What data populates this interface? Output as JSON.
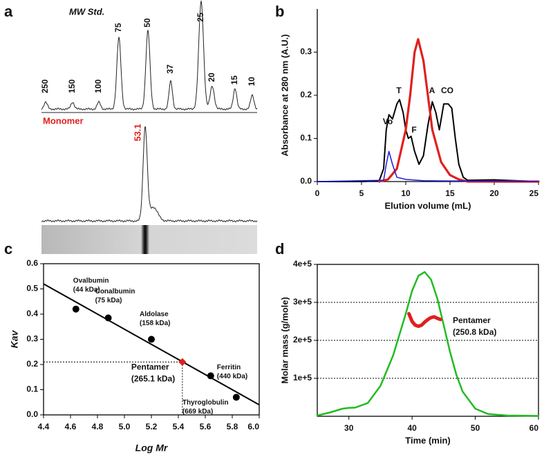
{
  "chart_data": [
    {
      "type": "electropherogram",
      "label": "a",
      "title": "MW Std.",
      "markers": [
        250,
        150,
        100,
        75,
        50,
        37,
        25,
        20,
        15,
        10
      ],
      "section_label": "Monomer",
      "peak_label": 53.1
    },
    {
      "type": "line",
      "label": "b",
      "xlabel": "Elution volume (mL)",
      "ylabel": "Absorbance at 280 nm (A.U.)",
      "xlim": [
        0,
        25
      ],
      "ylim": [
        0,
        0.4
      ],
      "xticks": [
        0,
        5,
        10,
        15,
        20,
        25
      ],
      "yticks": [
        {
          "value": 0,
          "label": "0.0"
        },
        0.1,
        0.2,
        0.3
      ],
      "grid": false,
      "series": [
        {
          "color": "#000000",
          "x": [
            0,
            5,
            7,
            7.5,
            7.8,
            8.1,
            8.5,
            9,
            9.3,
            9.7,
            10,
            10.3,
            10.6,
            11,
            11.5,
            12,
            12.5,
            13,
            13.4,
            13.8,
            14.3,
            14.8,
            15.2,
            15.6,
            16,
            16.5,
            17,
            20,
            25
          ],
          "values": [
            0,
            0,
            0.002,
            0.03,
            0.12,
            0.155,
            0.145,
            0.18,
            0.19,
            0.16,
            0.12,
            0.1,
            0.105,
            0.07,
            0.04,
            0.06,
            0.13,
            0.185,
            0.16,
            0.12,
            0.18,
            0.18,
            0.17,
            0.1,
            0.04,
            0.01,
            0.003,
            0.004,
            0
          ]
        },
        {
          "color": "#e0201e",
          "x": [
            7,
            8,
            9,
            10,
            10.5,
            11,
            11.4,
            12,
            12.5,
            13,
            14,
            15,
            16,
            17,
            25
          ],
          "values": [
            0,
            0.005,
            0.03,
            0.12,
            0.2,
            0.3,
            0.33,
            0.28,
            0.2,
            0.12,
            0.045,
            0.015,
            0.005,
            0,
            0
          ]
        },
        {
          "color": "#1a1adb",
          "x": [
            0,
            7.5,
            7.8,
            8.1,
            8.5,
            9,
            10,
            12,
            25
          ],
          "values": [
            0,
            0.003,
            0.04,
            0.07,
            0.04,
            0.01,
            0.005,
            0.002,
            0
          ]
        }
      ],
      "annotations": [
        {
          "text": "T",
          "color": "#111111"
        },
        {
          "text": "F",
          "color": "#111111"
        },
        {
          "text": "A",
          "color": "#111111"
        },
        {
          "text": "CO",
          "color": "#111111"
        },
        {
          "text": "Vo",
          "color": "#1a1adb"
        }
      ]
    },
    {
      "type": "scatter",
      "label": "c",
      "xlabel": "Log Mr",
      "ylabel": "Kav",
      "xlim": [
        4.4,
        6.0
      ],
      "ylim": [
        0,
        0.6
      ],
      "xticks": [
        4.4,
        4.6,
        4.8,
        {
          "value": 5,
          "label": "5.0"
        },
        5.2,
        5.4,
        5.6,
        5.8,
        {
          "value": 6,
          "label": "6.0"
        }
      ],
      "yticks": [
        {
          "value": 0,
          "label": "0.0"
        },
        0.1,
        0.2,
        0.3,
        0.4,
        0.5,
        0.6
      ],
      "x": [
        4.64,
        4.88,
        5.2,
        5.64,
        5.83
      ],
      "values": [
        0.42,
        0.385,
        0.3,
        0.155,
        0.07
      ],
      "color": "#000000",
      "point_labels": [
        "Ovalbumin",
        "Conalbumin",
        "Aldolase",
        "Ferritin",
        "Thyroglobulin"
      ],
      "point_sublabels": [
        "(44 kDa)",
        "(75 kDa)",
        "(158 kDa)",
        "(440 kDa)",
        "(669 kDa)"
      ],
      "fit": {
        "x": [
          4.4,
          6.0
        ],
        "values": [
          0.52,
          0.04
        ]
      },
      "highlight": {
        "x": 5.43,
        "y": 0.21,
        "label": "Pentamer",
        "sublabel": "(265.1 kDa)",
        "color": "#e0201e"
      }
    },
    {
      "type": "line",
      "label": "d",
      "xlabel": "Time (min)",
      "ylabel": "Molar mass (g/mole)",
      "xlim": [
        25,
        60
      ],
      "ylim": [
        0,
        400000
      ],
      "xticks": [
        30,
        40,
        50,
        60
      ],
      "yticks": [
        {
          "value": 100000,
          "label": "1e+5"
        },
        {
          "value": 200000,
          "label": "2e+5"
        },
        {
          "value": 300000,
          "label": "3e+5"
        },
        {
          "value": 400000,
          "label": "4e+5"
        }
      ],
      "grid": true,
      "series": [
        {
          "color": "#22bb22",
          "x": [
            25,
            27,
            29,
            30,
            31,
            33,
            35,
            37,
            39,
            40,
            41,
            42,
            43,
            44,
            45,
            46,
            47,
            48,
            50,
            52,
            55,
            60
          ],
          "values": [
            2000,
            10000,
            20000,
            22000,
            23000,
            35000,
            80000,
            160000,
            270000,
            330000,
            370000,
            380000,
            360000,
            310000,
            240000,
            170000,
            110000,
            65000,
            20000,
            6000,
            2000,
            1000
          ]
        },
        {
          "color": "#e0201e",
          "x": [
            39.5,
            40,
            40.5,
            41,
            41.5,
            42,
            42.5,
            43,
            43.5,
            44,
            44.5
          ],
          "values": [
            270000,
            250000,
            240000,
            237000,
            240000,
            248000,
            255000,
            260000,
            262000,
            258000,
            255000
          ]
        }
      ],
      "annotations": [
        {
          "text": "Pentamer",
          "color": "#e0201e"
        },
        {
          "text": "(250.8 kDa)",
          "color": "#e0201e"
        }
      ]
    }
  ]
}
